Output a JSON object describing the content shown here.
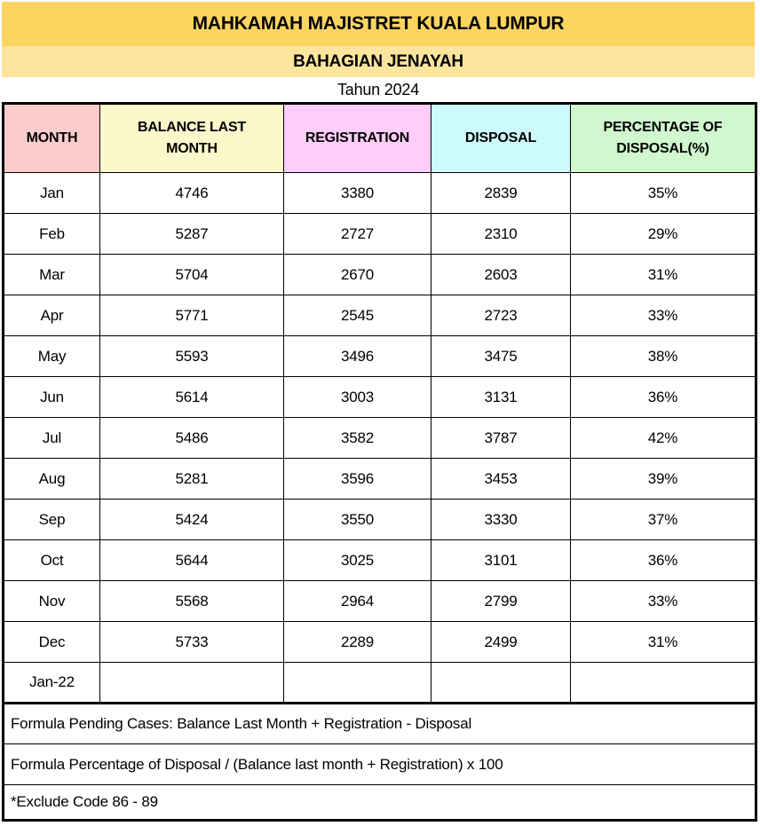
{
  "page": {
    "title": "MAHKAMAH MAJISTRET KUALA LUMPUR",
    "subtitle": "BAHAGIAN JENAYAH",
    "year_label": "Tahun 2024"
  },
  "colors": {
    "title_band": "#FCD460",
    "subtitle_band": "#FDE59E",
    "month_header": "#FBCCCB",
    "balance_header": "#FCF8CB",
    "registration_header": "#FECDFA",
    "disposal_header": "#CDFAFD",
    "percentage_header": "#D0F7CE"
  },
  "table": {
    "headers": [
      "MONTH",
      "BALANCE LAST MONTH",
      "REGISTRATION",
      "DISPOSAL",
      "PERCENTAGE OF DISPOSAL(%)"
    ],
    "rows": [
      [
        "Jan",
        "4746",
        "3380",
        "2839",
        "35%"
      ],
      [
        "Feb",
        "5287",
        "2727",
        "2310",
        "29%"
      ],
      [
        "Mar",
        "5704",
        "2670",
        "2603",
        "31%"
      ],
      [
        "Apr",
        "5771",
        "2545",
        "2723",
        "33%"
      ],
      [
        "May",
        "5593",
        "3496",
        "3475",
        "38%"
      ],
      [
        "Jun",
        "5614",
        "3003",
        "3131",
        "36%"
      ],
      [
        "Jul",
        "5486",
        "3582",
        "3787",
        "42%"
      ],
      [
        "Aug",
        "5281",
        "3596",
        "3453",
        "39%"
      ],
      [
        "Sep",
        "5424",
        "3550",
        "3330",
        "37%"
      ],
      [
        "Oct",
        "5644",
        "3025",
        "3101",
        "36%"
      ],
      [
        "Nov",
        "5568",
        "2964",
        "2799",
        "33%"
      ],
      [
        "Dec",
        "5733",
        "2289",
        "2499",
        "31%"
      ],
      [
        "Jan-22",
        "",
        "",
        "",
        ""
      ]
    ]
  },
  "footnotes": [
    "Formula Pending Cases: Balance Last Month + Registration - Disposal",
    "Formula Percentage of Disposal / (Balance last month + Registration) x 100",
    "*Exclude Code 86 - 89"
  ]
}
